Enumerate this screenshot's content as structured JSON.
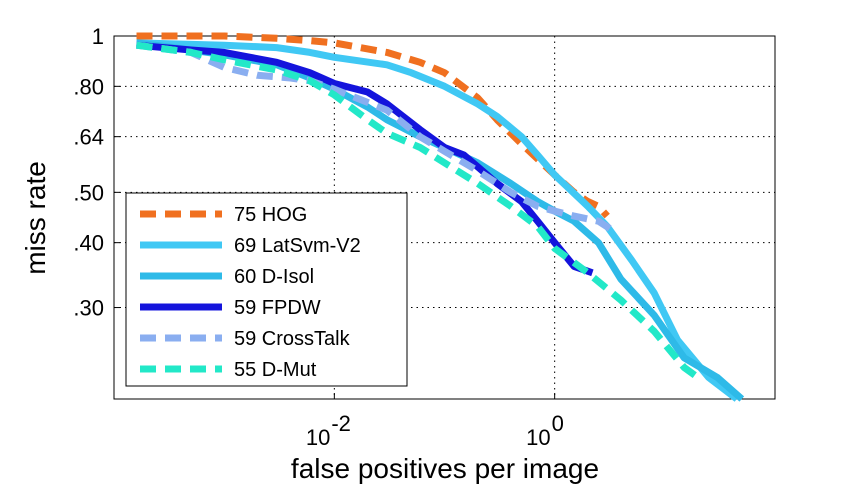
{
  "chart_data": {
    "type": "line",
    "title": "",
    "xlabel": "false positives per image",
    "ylabel": "miss rate",
    "x_scale": "log",
    "y_scale": "log",
    "xlim": [
      0.0001,
      100
    ],
    "ylim": [
      0.2,
      1
    ],
    "x_ticks": [
      {
        "value": 0.01,
        "base": "10",
        "exp": "-2"
      },
      {
        "value": 1,
        "base": "10",
        "exp": "0"
      }
    ],
    "y_ticks": [
      {
        "value": 1,
        "label": "1"
      },
      {
        "value": 0.8,
        "label": ".80"
      },
      {
        "value": 0.64,
        "label": ".64"
      },
      {
        "value": 0.5,
        "label": ".50"
      },
      {
        "value": 0.4,
        "label": ".40"
      },
      {
        "value": 0.3,
        "label": ".30"
      }
    ],
    "grid": true,
    "legend_position": "bottom-left",
    "series": [
      {
        "name": "75 HOG",
        "color": "#f07020",
        "dash": true,
        "points": [
          [
            0.00016,
            1.0
          ],
          [
            0.001,
            1.0
          ],
          [
            0.003,
            0.99
          ],
          [
            0.006,
            0.98
          ],
          [
            0.01,
            0.97
          ],
          [
            0.03,
            0.93
          ],
          [
            0.06,
            0.89
          ],
          [
            0.1,
            0.85
          ],
          [
            0.2,
            0.76
          ],
          [
            0.3,
            0.69
          ],
          [
            0.5,
            0.62
          ],
          [
            0.7,
            0.58
          ],
          [
            1.0,
            0.54
          ],
          [
            1.5,
            0.5
          ],
          [
            2.0,
            0.48
          ],
          [
            2.5,
            0.47
          ],
          [
            3.0,
            0.45
          ]
        ]
      },
      {
        "name": "69 LatSvm-V2",
        "color": "#40c8f4",
        "dash": false,
        "points": [
          [
            0.00016,
            0.97
          ],
          [
            0.001,
            0.96
          ],
          [
            0.003,
            0.95
          ],
          [
            0.006,
            0.93
          ],
          [
            0.01,
            0.91
          ],
          [
            0.03,
            0.88
          ],
          [
            0.05,
            0.85
          ],
          [
            0.1,
            0.8
          ],
          [
            0.2,
            0.74
          ],
          [
            0.3,
            0.7
          ],
          [
            0.5,
            0.64
          ],
          [
            0.7,
            0.59
          ],
          [
            1.0,
            0.54
          ],
          [
            2.0,
            0.47
          ],
          [
            3.0,
            0.43
          ],
          [
            5.0,
            0.37
          ],
          [
            8.0,
            0.32
          ],
          [
            13.0,
            0.26
          ],
          [
            25.0,
            0.22
          ],
          [
            45.0,
            0.2
          ]
        ]
      },
      {
        "name": "60 D-Isol",
        "color": "#2ebae8",
        "dash": false,
        "points": [
          [
            0.00016,
            0.97
          ],
          [
            0.0005,
            0.94
          ],
          [
            0.001,
            0.92
          ],
          [
            0.003,
            0.88
          ],
          [
            0.006,
            0.83
          ],
          [
            0.01,
            0.79
          ],
          [
            0.02,
            0.73
          ],
          [
            0.03,
            0.69
          ],
          [
            0.06,
            0.64
          ],
          [
            0.1,
            0.61
          ],
          [
            0.2,
            0.57
          ],
          [
            0.4,
            0.52
          ],
          [
            0.7,
            0.48
          ],
          [
            1.0,
            0.46
          ],
          [
            1.5,
            0.44
          ],
          [
            2.5,
            0.4
          ],
          [
            4.0,
            0.34
          ],
          [
            8.0,
            0.29
          ],
          [
            15.0,
            0.24
          ],
          [
            30.0,
            0.22
          ],
          [
            50.0,
            0.2
          ]
        ]
      },
      {
        "name": "59 FPDW",
        "color": "#1414dc",
        "dash": false,
        "points": [
          [
            0.00016,
            0.96
          ],
          [
            0.0005,
            0.94
          ],
          [
            0.001,
            0.93
          ],
          [
            0.003,
            0.89
          ],
          [
            0.006,
            0.85
          ],
          [
            0.01,
            0.81
          ],
          [
            0.02,
            0.78
          ],
          [
            0.03,
            0.74
          ],
          [
            0.06,
            0.66
          ],
          [
            0.1,
            0.61
          ],
          [
            0.15,
            0.59
          ],
          [
            0.2,
            0.56
          ],
          [
            0.3,
            0.52
          ],
          [
            0.5,
            0.48
          ],
          [
            0.7,
            0.44
          ],
          [
            1.0,
            0.4
          ],
          [
            1.5,
            0.36
          ],
          [
            2.2,
            0.35
          ]
        ]
      },
      {
        "name": "59 CrossTalk",
        "color": "#8aaef0",
        "dash": true,
        "points": [
          [
            0.00016,
            0.96
          ],
          [
            0.0005,
            0.93
          ],
          [
            0.001,
            0.87
          ],
          [
            0.002,
            0.84
          ],
          [
            0.004,
            0.83
          ],
          [
            0.006,
            0.82
          ],
          [
            0.01,
            0.79
          ],
          [
            0.03,
            0.72
          ],
          [
            0.06,
            0.64
          ],
          [
            0.1,
            0.6
          ],
          [
            0.2,
            0.55
          ],
          [
            0.4,
            0.5
          ],
          [
            0.7,
            0.47
          ],
          [
            1.0,
            0.46
          ],
          [
            1.5,
            0.45
          ],
          [
            2.5,
            0.44
          ],
          [
            3.5,
            0.42
          ]
        ]
      },
      {
        "name": "55 D-Mut",
        "color": "#22e8c8",
        "dash": true,
        "points": [
          [
            0.00016,
            0.96
          ],
          [
            0.0005,
            0.93
          ],
          [
            0.001,
            0.9
          ],
          [
            0.003,
            0.86
          ],
          [
            0.006,
            0.82
          ],
          [
            0.01,
            0.77
          ],
          [
            0.02,
            0.69
          ],
          [
            0.03,
            0.65
          ],
          [
            0.06,
            0.61
          ],
          [
            0.1,
            0.57
          ],
          [
            0.2,
            0.52
          ],
          [
            0.4,
            0.47
          ],
          [
            0.7,
            0.43
          ],
          [
            1.0,
            0.39
          ],
          [
            2.0,
            0.35
          ],
          [
            4.0,
            0.31
          ],
          [
            8.0,
            0.27
          ],
          [
            15.0,
            0.23
          ],
          [
            20.0,
            0.22
          ]
        ]
      }
    ]
  }
}
